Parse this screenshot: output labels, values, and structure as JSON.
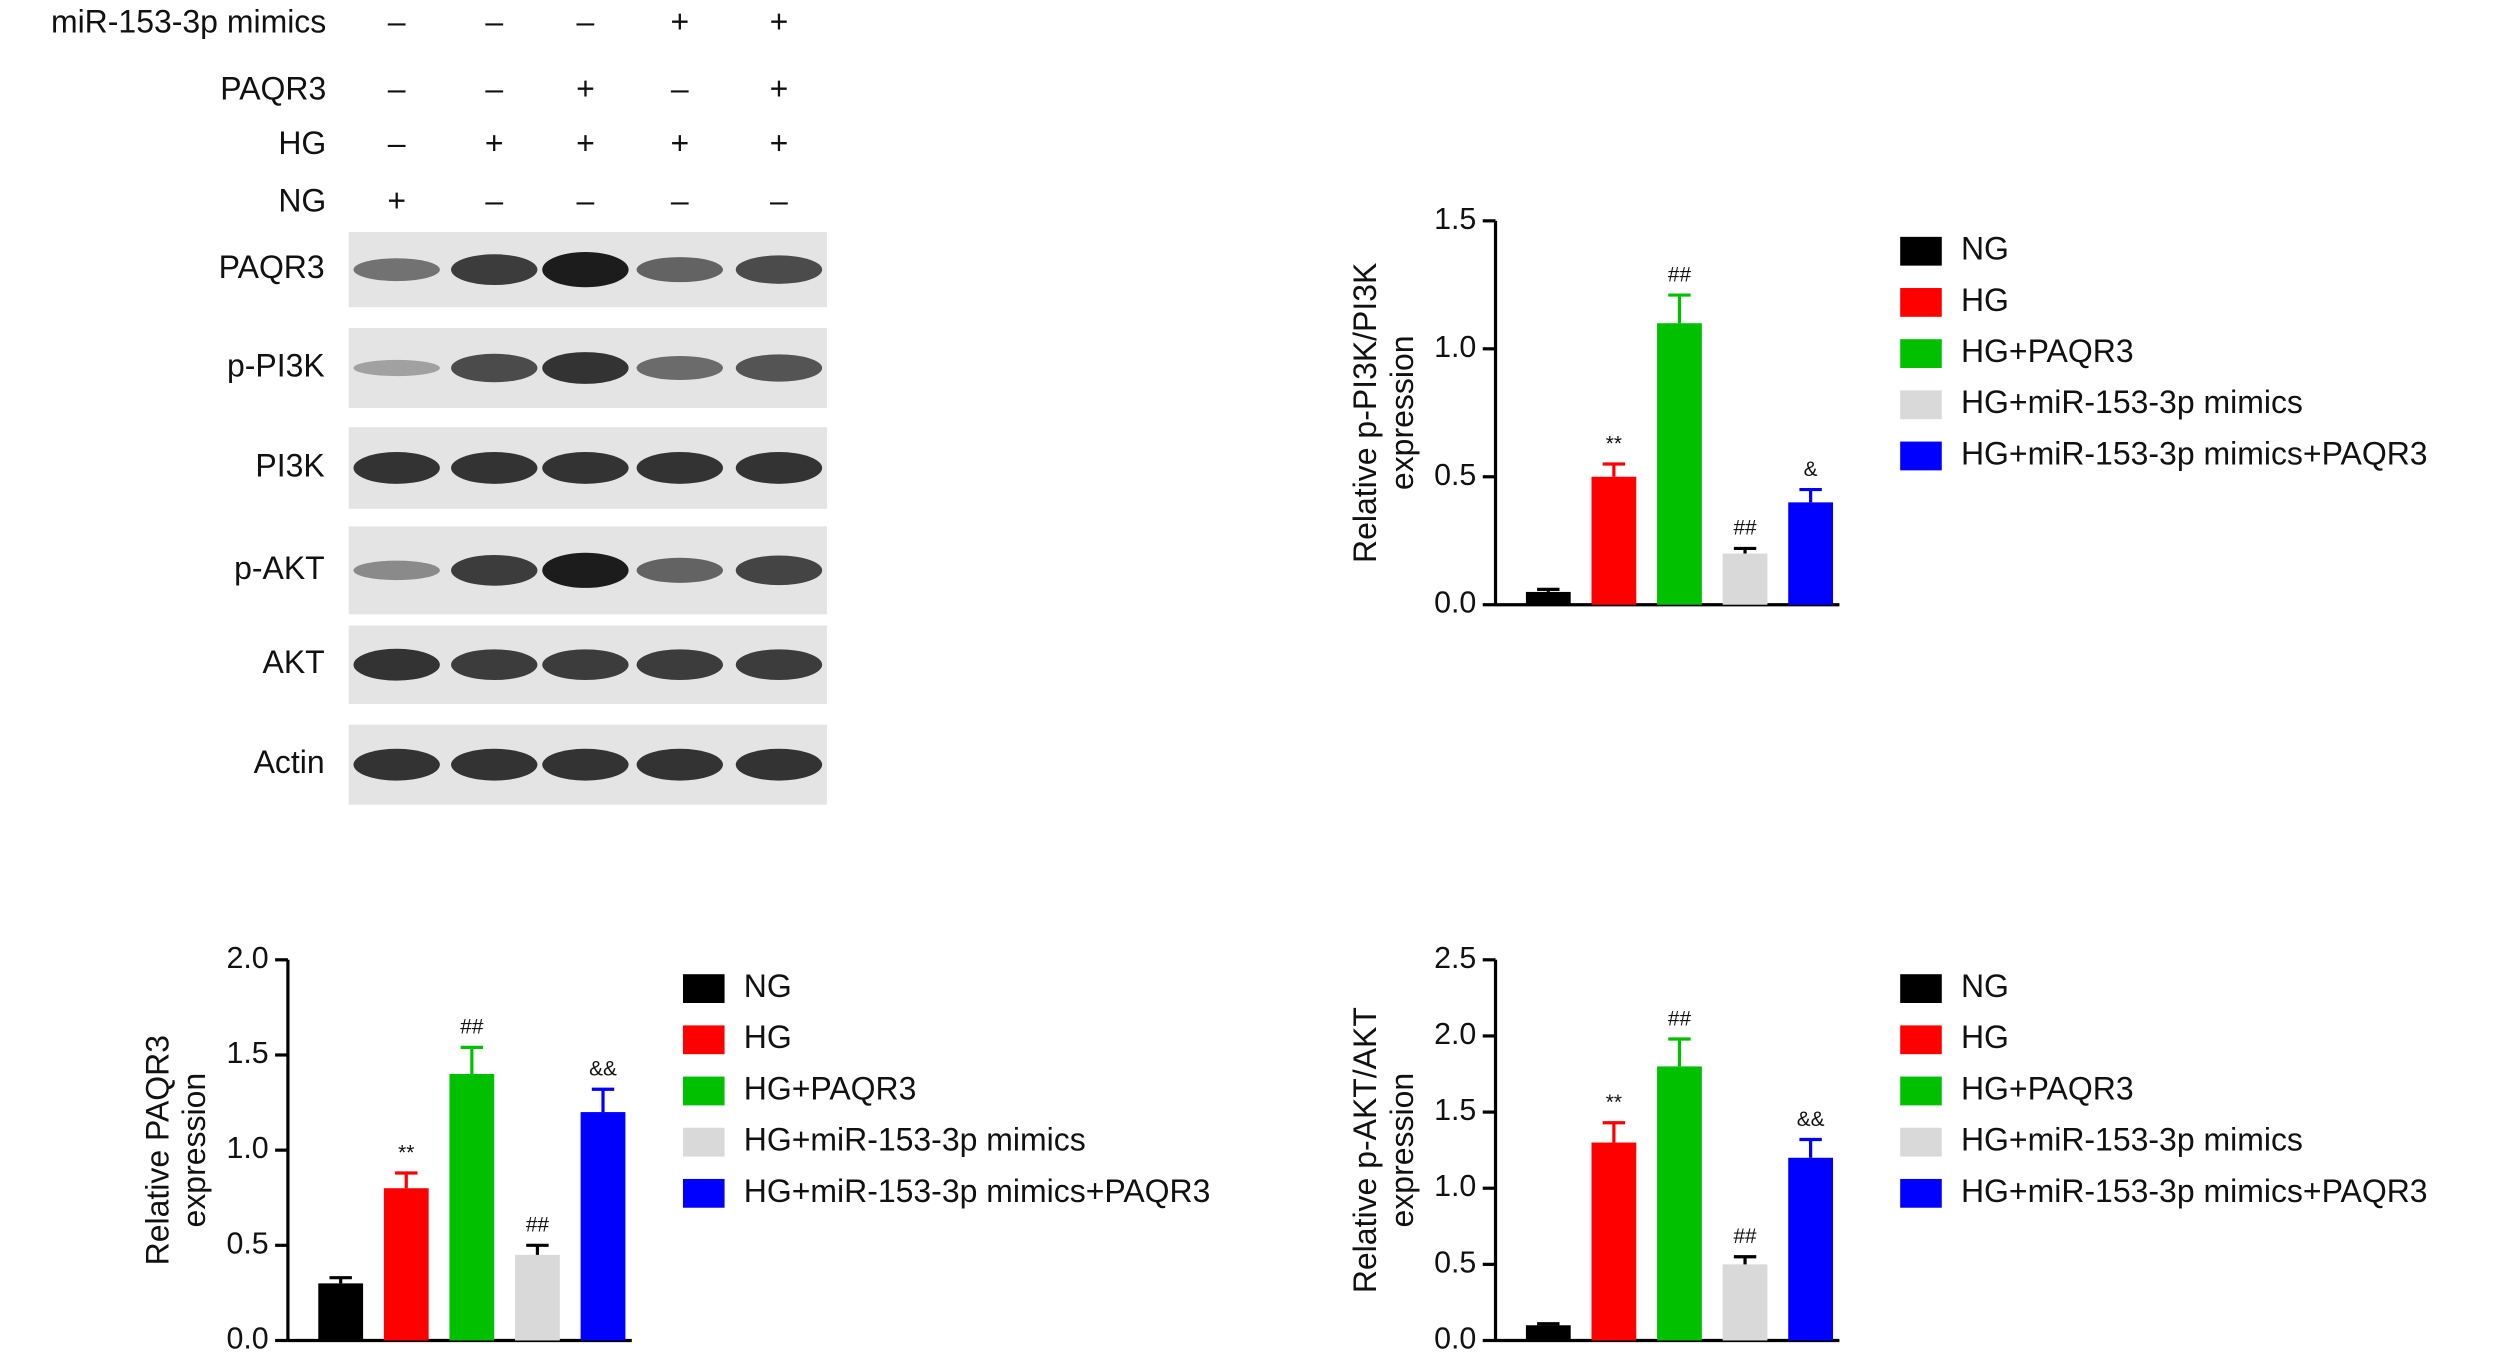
{
  "blot": {
    "treatments": [
      {
        "label": "miR-153-3p mimics",
        "signs": [
          "–",
          "–",
          "–",
          "+",
          "+"
        ]
      },
      {
        "label": "PAQR3",
        "signs": [
          "–",
          "–",
          "+",
          "–",
          "+"
        ]
      },
      {
        "label": "HG",
        "signs": [
          "–",
          "+",
          "+",
          "+",
          "+"
        ]
      },
      {
        "label": "NG",
        "signs": [
          "+",
          "–",
          "–",
          "–",
          "–"
        ]
      }
    ],
    "bands": [
      "PAQR3",
      "p-PI3K",
      "PI3K",
      "p-AKT",
      "AKT",
      "Actin"
    ]
  },
  "chart_data": [
    {
      "type": "bar",
      "ylabel": [
        "Relative p-PI3K/PI3K",
        "expression"
      ],
      "categories": [
        "NG",
        "HG",
        "HG+PAQR3",
        "HG+miR-153-3p mimics",
        "HG+miR-153-3p mimics+PAQR3"
      ],
      "colors": [
        "#000000",
        "#ff0000",
        "#00c000",
        "#d9d9d9",
        "#0000ff"
      ],
      "values": [
        0.05,
        0.5,
        1.1,
        0.2,
        0.4
      ],
      "errors": [
        0.01,
        0.05,
        0.11,
        0.02,
        0.05
      ],
      "significance": [
        null,
        "**",
        "##",
        "##",
        "&"
      ],
      "ylim": [
        0,
        1.5
      ],
      "yticks": [
        {
          "value": 0,
          "label": "0.0"
        },
        0.5,
        {
          "value": 1,
          "label": "1.0"
        },
        1.5
      ]
    },
    {
      "type": "bar",
      "ylabel": [
        "Relative PAQR3",
        "expression"
      ],
      "categories": [
        "NG",
        "HG",
        "HG+PAQR3",
        "HG+miR-153-3p mimics",
        "HG+miR-153-3p mimics+PAQR3"
      ],
      "colors": [
        "#000000",
        "#ff0000",
        "#00c000",
        "#d9d9d9",
        "#0000ff"
      ],
      "values": [
        0.3,
        0.8,
        1.4,
        0.45,
        1.2
      ],
      "errors": [
        0.03,
        0.08,
        0.14,
        0.05,
        0.12
      ],
      "significance": [
        null,
        "**",
        "##",
        "##",
        "&&"
      ],
      "ylim": [
        0,
        2
      ],
      "yticks": [
        {
          "value": 0,
          "label": "0.0"
        },
        0.5,
        {
          "value": 1,
          "label": "1.0"
        },
        1.5,
        {
          "value": 2,
          "label": "2.0"
        }
      ]
    },
    {
      "type": "bar",
      "ylabel": [
        "Relative p-AKT/AKT",
        "expression"
      ],
      "categories": [
        "NG",
        "HG",
        "HG+PAQR3",
        "HG+miR-153-3p mimics",
        "HG+miR-153-3p mimics+PAQR3"
      ],
      "colors": [
        "#000000",
        "#ff0000",
        "#00c000",
        "#d9d9d9",
        "#0000ff"
      ],
      "values": [
        0.1,
        1.3,
        1.8,
        0.5,
        1.2
      ],
      "errors": [
        0.01,
        0.13,
        0.18,
        0.05,
        0.12
      ],
      "significance": [
        null,
        "**",
        "##",
        "##",
        "&&"
      ],
      "ylim": [
        0,
        2.5
      ],
      "yticks": [
        {
          "value": 0,
          "label": "0.0"
        },
        0.5,
        {
          "value": 1,
          "label": "1.0"
        },
        1.5,
        {
          "value": 2,
          "label": "2.0"
        },
        2.5
      ]
    }
  ]
}
